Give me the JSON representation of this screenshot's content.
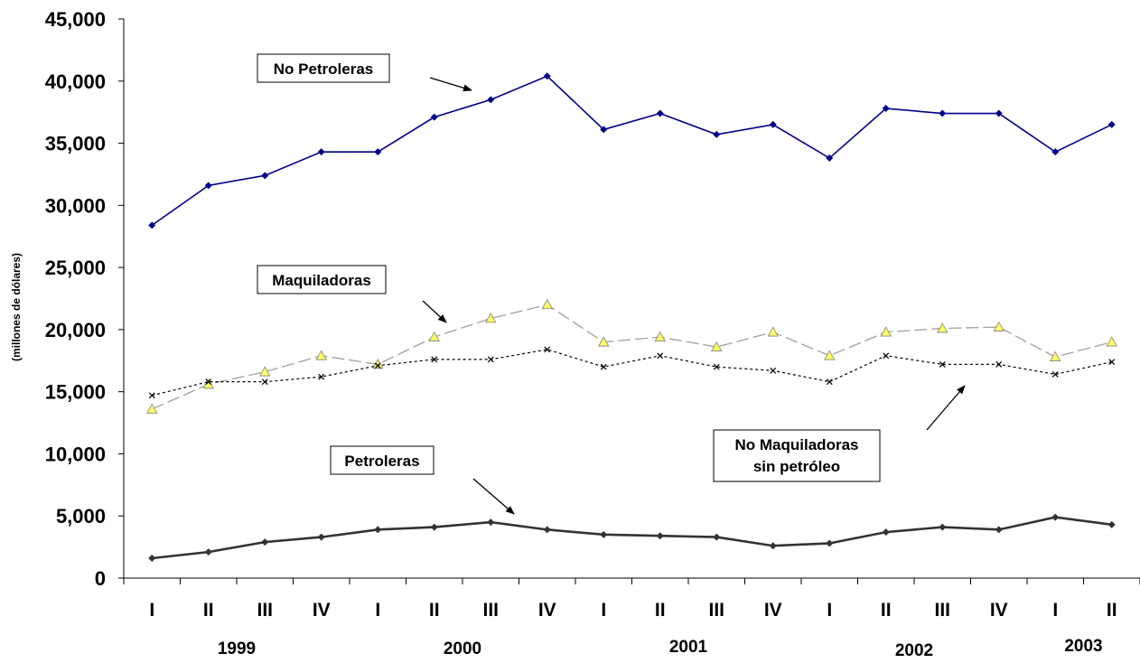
{
  "chart_data": {
    "type": "line",
    "ylabel": "(millones de dólares)",
    "ylim": [
      0,
      45000
    ],
    "yticks": [
      "0",
      "5,000",
      "10,000",
      "15,000",
      "20,000",
      "25,000",
      "30,000",
      "35,000",
      "40,000",
      "45,000"
    ],
    "categories": [
      "I",
      "II",
      "III",
      "IV",
      "I",
      "II",
      "III",
      "IV",
      "I",
      "II",
      "III",
      "IV",
      "I",
      "II",
      "III",
      "IV",
      "I",
      "II"
    ],
    "years": [
      "1999",
      "2000",
      "2001",
      "2002",
      "2003"
    ],
    "grid": false,
    "series": [
      {
        "name": "No Petroleras",
        "color": "#00008b",
        "marker": "diamond",
        "values": [
          28400,
          31600,
          32400,
          34300,
          34300,
          37100,
          38500,
          40400,
          36100,
          37400,
          35700,
          36500,
          33800,
          37800,
          37400,
          37400,
          34300,
          36500
        ]
      },
      {
        "name": "Maquiladoras",
        "color": "#a0a0a0",
        "marker": "triangle",
        "marker_color": "#ffff66",
        "values": [
          13600,
          15600,
          16600,
          17900,
          17200,
          19400,
          20900,
          22000,
          19000,
          19400,
          18600,
          19800,
          17900,
          19800,
          20100,
          20200,
          17800,
          19000
        ]
      },
      {
        "name": "No Maquiladoras sin petróleo",
        "color": "#000000",
        "marker": "x",
        "values": [
          14700,
          15800,
          15800,
          16200,
          17100,
          17600,
          17600,
          18400,
          17000,
          17900,
          17000,
          16700,
          15800,
          17900,
          17200,
          17200,
          16400,
          17400
        ]
      },
      {
        "name": "Petroleras",
        "color": "#333333",
        "marker": "diamond",
        "values": [
          1600,
          2100,
          2900,
          3300,
          3900,
          4100,
          4500,
          3900,
          3500,
          3400,
          3300,
          2600,
          2800,
          3700,
          4100,
          3900,
          4900,
          4300
        ]
      }
    ],
    "annotations": {
      "no_petroleras": "No Petroleras",
      "maquiladoras": "Maquiladoras",
      "no_maquiladoras_l1": "No Maquiladoras",
      "no_maquiladoras_l2": "sin petróleo",
      "petroleras": "Petroleras"
    }
  }
}
